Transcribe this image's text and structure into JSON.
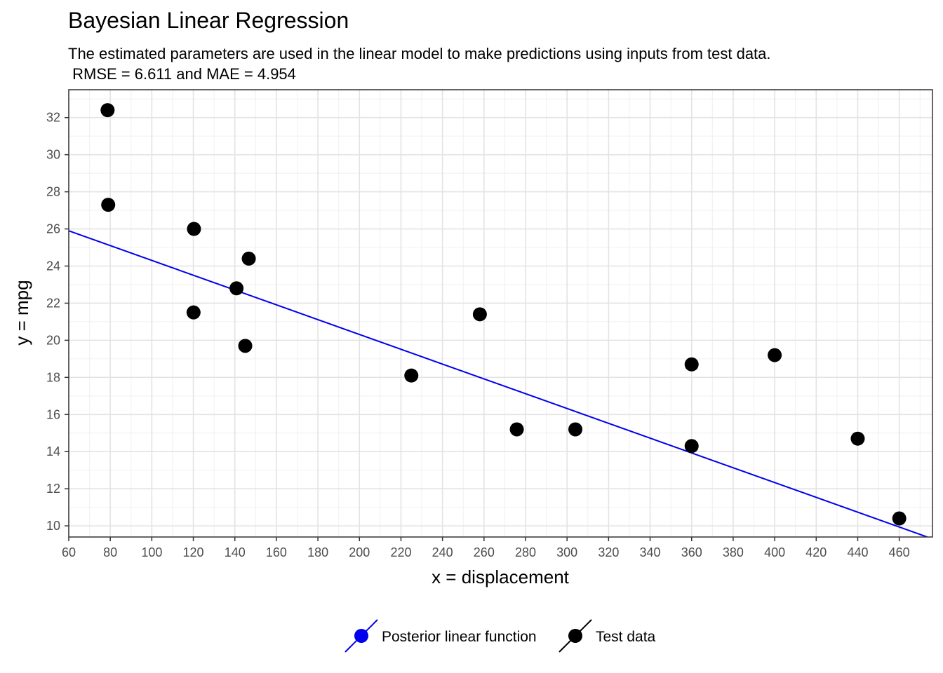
{
  "chart_data": {
    "type": "scatter",
    "title": "Bayesian Linear Regression",
    "subtitle_line1": "The estimated parameters are used in the linear model to make predictions using inputs from test data.",
    "subtitle_line2": " RMSE = 6.611 and MAE = 4.954",
    "xlabel": "x = displacement",
    "ylabel": "y = mpg",
    "xlim": [
      60,
      476
    ],
    "ylim": [
      9.4,
      33.5
    ],
    "x_ticks": [
      60,
      80,
      100,
      120,
      140,
      160,
      180,
      200,
      220,
      240,
      260,
      280,
      300,
      320,
      340,
      360,
      380,
      400,
      420,
      440,
      460
    ],
    "y_ticks": [
      10,
      12,
      14,
      16,
      18,
      20,
      22,
      24,
      26,
      28,
      30,
      32
    ],
    "x_minor_step": 10,
    "y_minor_step": 1,
    "grid": true,
    "legend_position": "bottom",
    "series": [
      {
        "name": "Posterior linear function",
        "kind": "line",
        "color": "#0000ee",
        "x": [
          60,
          476
        ],
        "y": [
          25.9,
          9.3
        ]
      },
      {
        "name": "Test data",
        "kind": "points",
        "color": "#000000",
        "x": [
          78.7,
          79.0,
          120.3,
          120.1,
          146.7,
          140.8,
          145.0,
          225.0,
          258.0,
          275.8,
          304.0,
          360.0,
          360.0,
          400.0,
          440.0,
          460.0
        ],
        "y": [
          32.4,
          27.3,
          26.0,
          21.5,
          24.4,
          22.8,
          19.7,
          18.1,
          21.4,
          15.2,
          15.2,
          18.7,
          14.3,
          19.2,
          14.7,
          10.4
        ]
      }
    ]
  }
}
